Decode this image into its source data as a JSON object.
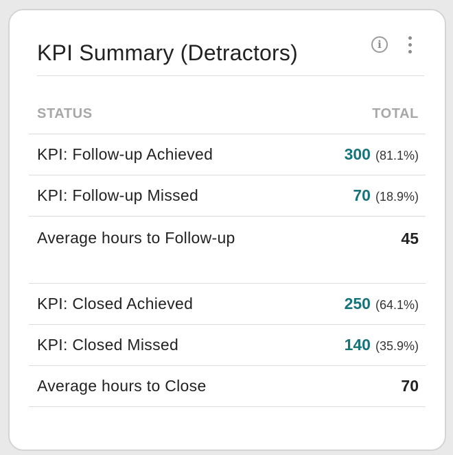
{
  "card": {
    "title": "KPI Summary (Detractors)",
    "info_icon": "i",
    "menu_icon": "more-vertical-icon"
  },
  "table": {
    "headers": {
      "status": "STATUS",
      "total": "TOTAL"
    },
    "rows": [
      {
        "status": "KPI: Follow-up Achieved",
        "count": "300",
        "percent": "(81.1%)"
      },
      {
        "status": "KPI: Follow-up Missed",
        "count": "70",
        "percent": "(18.9%)"
      },
      {
        "status": "Average hours to Follow-up",
        "count": "45",
        "percent": ""
      },
      {
        "status": "KPI: Closed Achieved",
        "count": "250",
        "percent": "(64.1%)"
      },
      {
        "status": "KPI: Closed Missed",
        "count": "140",
        "percent": "(35.9%)"
      },
      {
        "status": "Average hours to Close",
        "count": "70",
        "percent": ""
      }
    ]
  },
  "colors": {
    "accent": "#17737a",
    "text": "#222222",
    "muted": "#a7a7a7",
    "divider": "#dcdcdc"
  }
}
